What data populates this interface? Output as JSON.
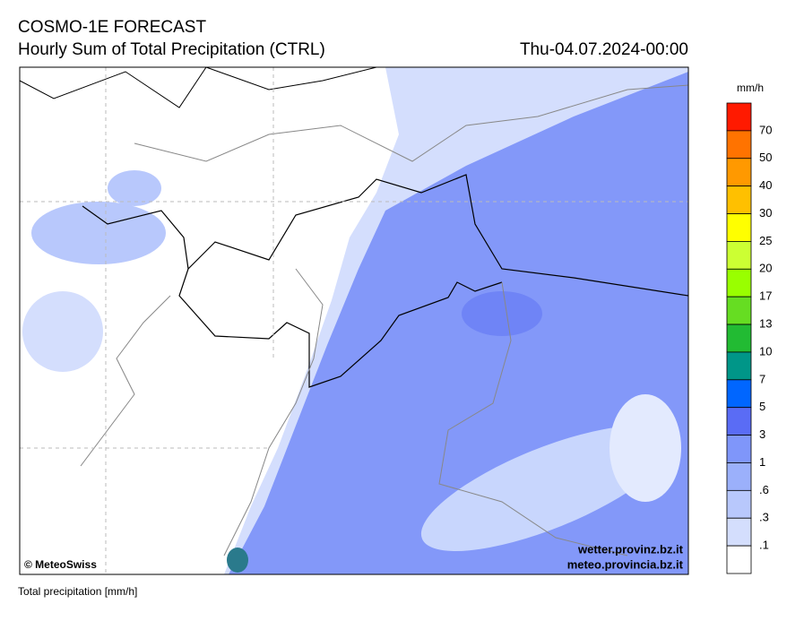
{
  "header": {
    "title": "COSMO-1E FORECAST",
    "subtitle": "Hourly Sum of Total Precipitation (CTRL)",
    "valid_time": "Thu-04.07.2024-00:00"
  },
  "map": {
    "credit": "© MeteoSwiss",
    "sources": [
      "wetter.provinz.bz.it",
      "meteo.provincia.bz.it"
    ]
  },
  "legend": {
    "unit": "mm/h",
    "labels": [
      "70",
      "50",
      "40",
      "30",
      "25",
      "20",
      "17",
      "13",
      "10",
      "7",
      "5",
      "3",
      "1",
      ".6",
      ".3",
      ".1"
    ],
    "colors": [
      "#ff1a00",
      "#ff7300",
      "#ff9900",
      "#ffc000",
      "#ffff00",
      "#ccff33",
      "#99ff00",
      "#66dd22",
      "#22bb33",
      "#009688",
      "#0066ff",
      "#5a6cf5",
      "#7f96fa",
      "#9bb0fb",
      "#b8c8fc",
      "#d4defd",
      "#ffffff"
    ]
  },
  "footer": {
    "caption": "Total precipitation [mm/h]"
  }
}
